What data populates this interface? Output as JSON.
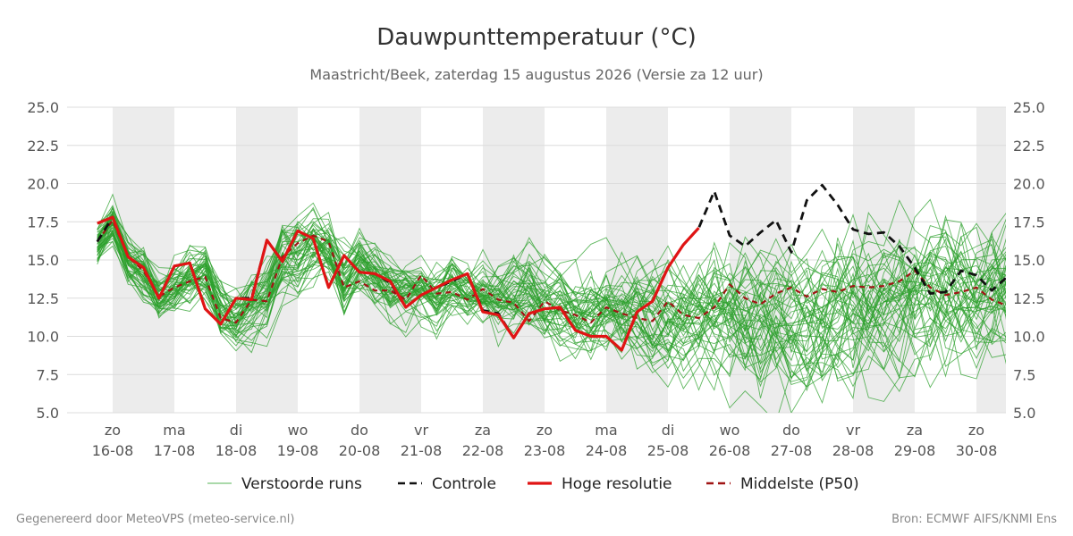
{
  "chart_data": {
    "type": "line",
    "title": "Dauwpunttemperatuur (°C)",
    "subtitle": "Maastricht/Beek, zaterdag 15 augustus 2026 (Versie za 12 uur)",
    "ylim": [
      5.0,
      25.0
    ],
    "yticks": [
      "5.0",
      "7.5",
      "10.0",
      "12.5",
      "15.0",
      "17.5",
      "20.0",
      "22.5",
      "25.0"
    ],
    "x_range_days": [
      -0.25,
      14.5
    ],
    "x_ticks": [
      {
        "day": "zo",
        "date": "16-08"
      },
      {
        "day": "ma",
        "date": "17-08"
      },
      {
        "day": "di",
        "date": "18-08"
      },
      {
        "day": "wo",
        "date": "19-08"
      },
      {
        "day": "do",
        "date": "20-08"
      },
      {
        "day": "vr",
        "date": "21-08"
      },
      {
        "day": "za",
        "date": "22-08"
      },
      {
        "day": "zo",
        "date": "23-08"
      },
      {
        "day": "ma",
        "date": "24-08"
      },
      {
        "day": "di",
        "date": "25-08"
      },
      {
        "day": "wo",
        "date": "26-08"
      },
      {
        "day": "do",
        "date": "27-08"
      },
      {
        "day": "vr",
        "date": "28-08"
      },
      {
        "day": "za",
        "date": "29-08"
      },
      {
        "day": "zo",
        "date": "30-08"
      }
    ],
    "shaded_bands": [
      [
        0.0,
        1.0
      ],
      [
        2.0,
        3.0
      ],
      [
        4.0,
        5.0
      ],
      [
        6.0,
        7.0
      ],
      [
        8.0,
        9.0
      ],
      [
        10.0,
        11.0
      ],
      [
        12.0,
        13.0
      ],
      [
        14.0,
        14.5
      ]
    ],
    "grid": true,
    "legend_position": "bottom",
    "ensemble": {
      "name": "Verstoorde runs",
      "member_count": 50,
      "color": "#2ca02c",
      "step_days": 0.25,
      "seed": 17,
      "mean": [
        16.0,
        17.5,
        15.0,
        14.3,
        12.5,
        13.0,
        13.7,
        14.0,
        11.6,
        11.0,
        12.0,
        12.3,
        14.8,
        15.2,
        16.2,
        15.8,
        13.5,
        14.8,
        13.8,
        13.2,
        12.8,
        12.9,
        12.3,
        13.4,
        12.8,
        12.9,
        12.6,
        13.1,
        13.5,
        12.6,
        12.3,
        11.8,
        11.5,
        11.6,
        11.2,
        11.3,
        11.2,
        11.4,
        11.0,
        11.6,
        11.9,
        11.8,
        11.4,
        11.2,
        11.5,
        11.3,
        11.2,
        11.6,
        11.9,
        12.2,
        12.3,
        12.5,
        12.6,
        12.8,
        12.9,
        13.0,
        13.0,
        13.1,
        13.2,
        13.2,
        13.3,
        13.3,
        13.2
      ],
      "spread": [
        1.2,
        1.0,
        1.2,
        1.2,
        1.3,
        1.3,
        1.3,
        1.4,
        1.5,
        1.5,
        1.5,
        1.6,
        1.6,
        1.7,
        1.7,
        1.7,
        1.6,
        1.6,
        1.6,
        1.5,
        1.5,
        1.5,
        1.5,
        1.5,
        1.5,
        1.6,
        1.7,
        1.8,
        1.9,
        2.0,
        2.1,
        2.1,
        2.2,
        2.3,
        2.4,
        2.5,
        2.6,
        2.7,
        2.8,
        2.9,
        3.0,
        3.1,
        3.1,
        3.2,
        3.2,
        3.3,
        3.3,
        3.3,
        3.4,
        3.4,
        3.4,
        3.4,
        3.5,
        3.5,
        3.5,
        3.5,
        3.5,
        3.5,
        3.5,
        3.5,
        3.5,
        3.5,
        3.5
      ]
    },
    "series": [
      {
        "name": "Middelste (P50)",
        "color": "#a01414",
        "dash": "6,5",
        "width": 2.2,
        "x": [
          -0.25,
          0.0,
          0.25,
          0.5,
          0.75,
          1.0,
          1.25,
          1.5,
          1.75,
          2.0,
          2.25,
          2.5,
          2.75,
          3.0,
          3.25,
          3.5,
          3.75,
          4.0,
          4.25,
          4.5,
          4.75,
          5.0,
          5.25,
          5.5,
          5.75,
          6.0,
          6.25,
          6.5,
          6.75,
          7.0,
          7.25,
          7.5,
          7.75,
          8.0,
          8.25,
          8.5,
          8.75,
          9.0,
          9.25,
          9.5,
          9.75,
          10.0,
          10.25,
          10.5,
          10.75,
          11.0,
          11.25,
          11.5,
          11.75,
          12.0,
          12.25,
          12.5,
          12.75,
          13.0,
          13.25,
          13.5,
          13.75,
          14.0,
          14.25,
          14.5
        ],
        "y": [
          16.2,
          17.6,
          15.2,
          14.3,
          12.6,
          13.2,
          13.6,
          13.9,
          11.2,
          10.9,
          12.4,
          12.3,
          15.2,
          16.1,
          16.6,
          16.2,
          13.2,
          13.6,
          13.0,
          13.0,
          12.4,
          14.0,
          12.8,
          12.9,
          12.4,
          13.1,
          12.4,
          12.2,
          11.0,
          12.3,
          11.7,
          11.4,
          10.9,
          11.9,
          11.5,
          11.2,
          11.0,
          12.3,
          11.4,
          11.2,
          11.9,
          13.4,
          12.5,
          12.1,
          12.8,
          13.2,
          12.6,
          13.1,
          12.9,
          13.3,
          13.2,
          13.3,
          13.6,
          14.3,
          13.2,
          12.7,
          12.9,
          13.2,
          12.4,
          12.0
        ]
      },
      {
        "name": "Controle",
        "color": "#111111",
        "dash": "9,6",
        "width": 2.8,
        "x": [
          -0.25,
          0.0,
          0.25,
          0.5,
          0.75,
          1.0,
          1.25,
          1.5,
          1.75,
          2.0,
          2.25,
          2.5,
          2.75,
          3.0,
          3.25,
          3.5,
          3.75,
          4.0,
          4.25,
          4.5,
          4.75,
          5.0,
          5.25,
          5.5,
          5.75,
          6.0,
          6.25,
          6.5,
          6.75,
          7.0,
          7.25,
          7.5,
          7.75,
          8.0,
          8.25,
          8.5,
          8.75,
          9.0,
          9.25,
          9.5,
          9.75,
          10.0,
          10.25,
          10.5,
          10.75,
          11.0,
          11.25,
          11.5,
          11.75,
          12.0,
          12.25,
          12.5,
          12.75,
          13.0,
          13.25,
          13.5,
          13.75,
          14.0,
          14.25,
          14.5
        ],
        "y": [
          16.2,
          17.8,
          15.2,
          14.5,
          12.5,
          14.6,
          14.8,
          11.8,
          10.8,
          12.5,
          12.5,
          16.3,
          14.9,
          16.9,
          16.4,
          13.2,
          15.3,
          14.2,
          14.1,
          13.5,
          11.9,
          12.7,
          13.2,
          13.6,
          14.1,
          11.7,
          11.5,
          9.9,
          11.5,
          11.8,
          11.9,
          10.4,
          10.0,
          10.0,
          9.1,
          11.6,
          12.3,
          14.5,
          16.0,
          17.1,
          19.5,
          16.6,
          15.9,
          16.8,
          17.6,
          15.5,
          18.9,
          19.9,
          18.6,
          17.0,
          16.7,
          16.8,
          15.9,
          14.5,
          12.8,
          12.9,
          14.3,
          14.0,
          13.0,
          13.9
        ]
      },
      {
        "name": "Hoge resolutie",
        "color": "#e01414",
        "dash": "",
        "width": 3.2,
        "x": [
          -0.25,
          0.0,
          0.25,
          0.5,
          0.75,
          1.0,
          1.25,
          1.5,
          1.75,
          2.0,
          2.25,
          2.5,
          2.75,
          3.0,
          3.25,
          3.5,
          3.75,
          4.0,
          4.25,
          4.5,
          4.75,
          5.0,
          5.25,
          5.5,
          5.75,
          6.0,
          6.25,
          6.5,
          6.75,
          7.0,
          7.25,
          7.5,
          7.75,
          8.0,
          8.25,
          8.5,
          8.75,
          9.0,
          9.25,
          9.5
        ],
        "y": [
          17.4,
          17.8,
          15.2,
          14.5,
          12.5,
          14.6,
          14.8,
          11.8,
          10.8,
          12.5,
          12.4,
          16.3,
          14.9,
          16.9,
          16.4,
          13.2,
          15.3,
          14.2,
          14.1,
          13.6,
          11.9,
          12.7,
          13.2,
          13.7,
          14.1,
          11.6,
          11.4,
          9.9,
          11.5,
          11.8,
          11.9,
          10.4,
          10.0,
          10.0,
          9.1,
          11.6,
          12.3,
          14.5,
          16.0,
          17.1
        ]
      }
    ],
    "legend": [
      {
        "label": "Verstoorde runs",
        "color": "#2ca02c",
        "style": "thin"
      },
      {
        "label": "Controle",
        "color": "#111111",
        "style": "dash"
      },
      {
        "label": "Hoge resolutie",
        "color": "#e01414",
        "style": "solid"
      },
      {
        "label": "Middelste (P50)",
        "color": "#a01414",
        "style": "dash"
      }
    ]
  },
  "footer": {
    "left": "Gegenereerd door MeteoVPS (meteo-service.nl)",
    "right": "Bron: ECMWF AIFS/KNMI Ens"
  }
}
